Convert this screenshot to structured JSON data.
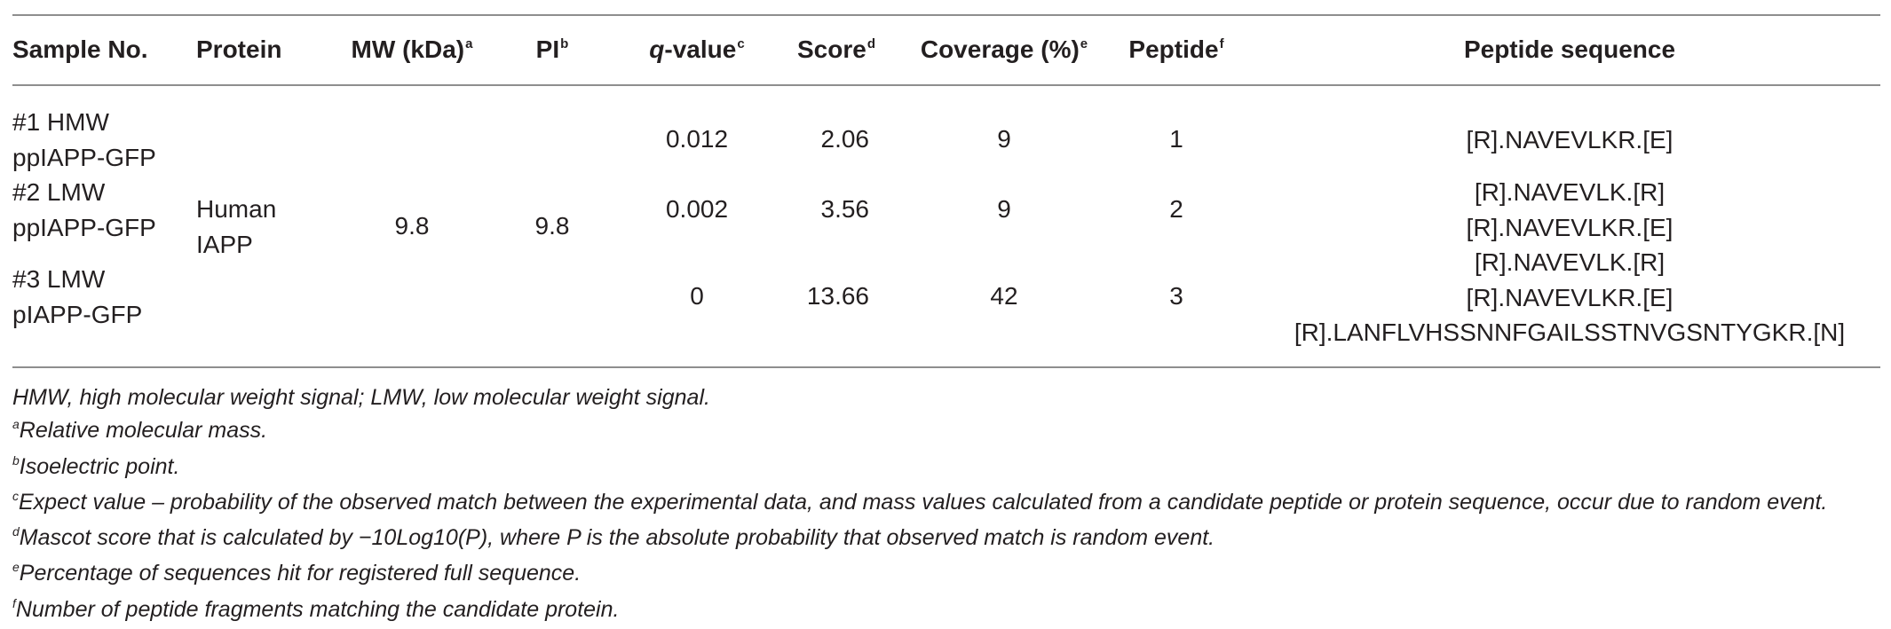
{
  "table": {
    "headers": {
      "sample_no": "Sample No.",
      "protein": "Protein",
      "mw": "MW (kDa)",
      "mw_sup": "a",
      "pi": "PI",
      "pi_sup": "b",
      "qvalue_q": "q",
      "qvalue_rest": "-value",
      "qvalue_sup": "c",
      "score": "Score",
      "score_sup": "d",
      "coverage": "Coverage (%)",
      "coverage_sup": "e",
      "peptide": "Peptide",
      "peptide_sup": "f",
      "peptide_sequence": "Peptide sequence"
    },
    "shared": {
      "protein_line1": "Human",
      "protein_line2": "IAPP",
      "mw": "9.8",
      "pi": "9.8"
    },
    "rows": [
      {
        "sample_line1": "#1 HMW",
        "sample_line2": "ppIAPP-GFP",
        "qvalue": "0.012",
        "score": "2.06",
        "coverage": "9",
        "peptide": "1",
        "sequences": [
          "[R].NAVEVLKR.[E]"
        ]
      },
      {
        "sample_line1": "#2 LMW",
        "sample_line2": "ppIAPP-GFP",
        "qvalue": "0.002",
        "score": "3.56",
        "coverage": "9",
        "peptide": "2",
        "sequences": [
          "[R].NAVEVLK.[R]",
          "[R].NAVEVLKR.[E]"
        ]
      },
      {
        "sample_line1": "#3 LMW",
        "sample_line2": "pIAPP-GFP",
        "qvalue": "0",
        "score": "13.66",
        "coverage": "42",
        "peptide": "3",
        "sequences": [
          "[R].NAVEVLK.[R]",
          "[R].NAVEVLKR.[E]",
          "[R].LANFLVHSSNNFGAILSSTNVGSNTYGKR.[N]"
        ]
      }
    ]
  },
  "footnotes": {
    "abbrev": "HMW, high molecular weight signal; LMW, low molecular weight signal.",
    "a_sup": "a",
    "a": "Relative molecular mass.",
    "b_sup": "b",
    "b": "Isoelectric point.",
    "c_sup": "c",
    "c": "Expect value – probability of the observed match between the experimental data, and mass values calculated from a candidate peptide or protein sequence, occur due to random event.",
    "d_sup": "d",
    "d": "Mascot score that is calculated by −10Log10(P), where P is the absolute probability that observed match is random event.",
    "e_sup": "e",
    "e": "Percentage of sequences hit for registered full sequence.",
    "f_sup": "f",
    "f": "Number of peptide fragments matching the candidate protein."
  }
}
